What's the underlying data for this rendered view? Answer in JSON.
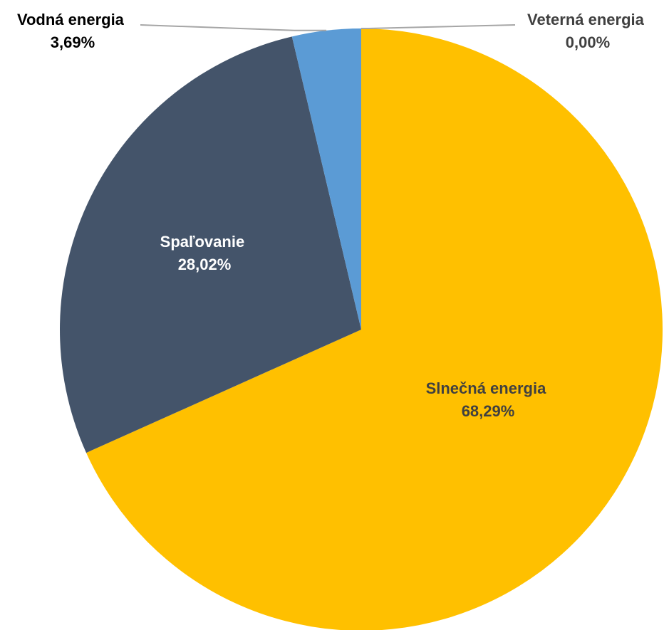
{
  "chart_data": {
    "type": "pie",
    "title": "",
    "start_angle_deg": 0,
    "direction": "clockwise",
    "slices": [
      {
        "label": "Slnečná energia",
        "value": 68.29,
        "value_label": "68,29%",
        "color": "#FFC000",
        "label_color": "#404040",
        "label_style": "inside"
      },
      {
        "label": "Spaľovanie",
        "value": 28.02,
        "value_label": "28,02%",
        "color": "#44546A",
        "label_color": "#FFFFFF",
        "label_style": "inside"
      },
      {
        "label": "Vodná energia",
        "value": 3.69,
        "value_label": "3,69%",
        "color": "#5B9BD5",
        "label_color": "#000000",
        "label_style": "callout-left"
      },
      {
        "label": "Veterná energia",
        "value": 0.0,
        "value_label": "0,00%",
        "color": "#A5A5A5",
        "label_color": "#404040",
        "label_style": "callout-right"
      }
    ],
    "legend": "none",
    "leader_line_color": "#A6A6A6"
  }
}
